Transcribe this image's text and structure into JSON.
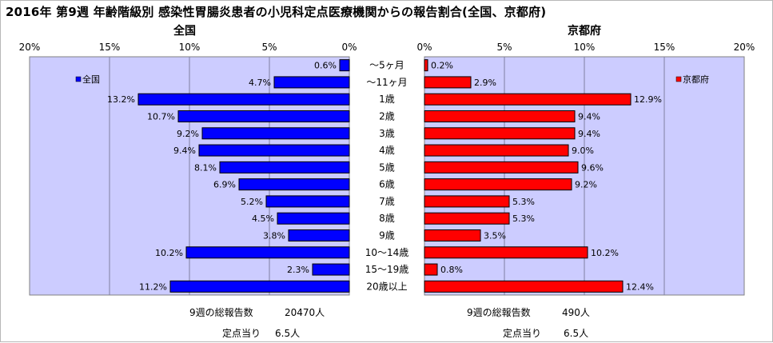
{
  "title": "2016年 第9週 年齢階級別 感染性胃腸炎患者の小児科定点医療機関からの報告割合(全国、京都府)",
  "colors": {
    "plot_bg": "#ccccff",
    "national_bar": "#0000ff",
    "kyoto_bar": "#ff0000",
    "grid": "#8080a0"
  },
  "chart_data": [
    {
      "type": "bar",
      "orientation": "horizontal",
      "direction": "right-to-left",
      "title": "全国",
      "categories": [
        "～5ヶ月",
        "～11ヶ月",
        "1歳",
        "2歳",
        "3歳",
        "4歳",
        "5歳",
        "6歳",
        "7歳",
        "8歳",
        "9歳",
        "10～14歳",
        "15～19歳",
        "20歳以上"
      ],
      "series": [
        {
          "name": "全国",
          "values": [
            0.6,
            4.7,
            13.2,
            10.7,
            9.2,
            9.4,
            8.1,
            6.9,
            5.2,
            4.5,
            3.8,
            10.2,
            2.3,
            11.2
          ]
        }
      ],
      "data_labels": [
        "0.6%",
        "4.7%",
        "13.2%",
        "10.7%",
        "9.2%",
        "9.4%",
        "8.1%",
        "6.9%",
        "5.2%",
        "4.5%",
        "3.8%",
        "10.2%",
        "2.3%",
        "11.2%"
      ],
      "xlim": [
        0,
        20
      ],
      "ticks": [
        0,
        5,
        10,
        15,
        20
      ],
      "tick_labels": [
        "0%",
        "5%",
        "10%",
        "15%",
        "20%"
      ],
      "legend": "全国",
      "legend_position": "top-left",
      "grid": true
    },
    {
      "type": "bar",
      "orientation": "horizontal",
      "direction": "left-to-right",
      "title": "京都府",
      "categories": [
        "～5ヶ月",
        "～11ヶ月",
        "1歳",
        "2歳",
        "3歳",
        "4歳",
        "5歳",
        "6歳",
        "7歳",
        "8歳",
        "9歳",
        "10～14歳",
        "15～19歳",
        "20歳以上"
      ],
      "series": [
        {
          "name": "京都府",
          "values": [
            0.2,
            2.9,
            12.9,
            9.4,
            9.4,
            9.0,
            9.6,
            9.2,
            5.3,
            5.3,
            3.5,
            10.2,
            0.8,
            12.4
          ]
        }
      ],
      "data_labels": [
        "0.2%",
        "2.9%",
        "12.9%",
        "9.4%",
        "9.4%",
        "9.0%",
        "9.6%",
        "9.2%",
        "5.3%",
        "5.3%",
        "3.5%",
        "10.2%",
        "0.8%",
        "12.4%"
      ],
      "xlim": [
        0,
        20
      ],
      "ticks": [
        0,
        5,
        10,
        15,
        20
      ],
      "tick_labels": [
        "0%",
        "5%",
        "10%",
        "15%",
        "20%"
      ],
      "legend": "京都府",
      "legend_position": "top-right",
      "grid": true
    }
  ],
  "footer": {
    "national": {
      "total_label": "9週の総報告数",
      "total_value": "20470人",
      "per_site_label": "定点当り",
      "per_site_value": "6.5人"
    },
    "kyoto": {
      "total_label": "9週の総報告数",
      "total_value": "490人",
      "per_site_label": "定点当り",
      "per_site_value": "6.5人"
    }
  }
}
